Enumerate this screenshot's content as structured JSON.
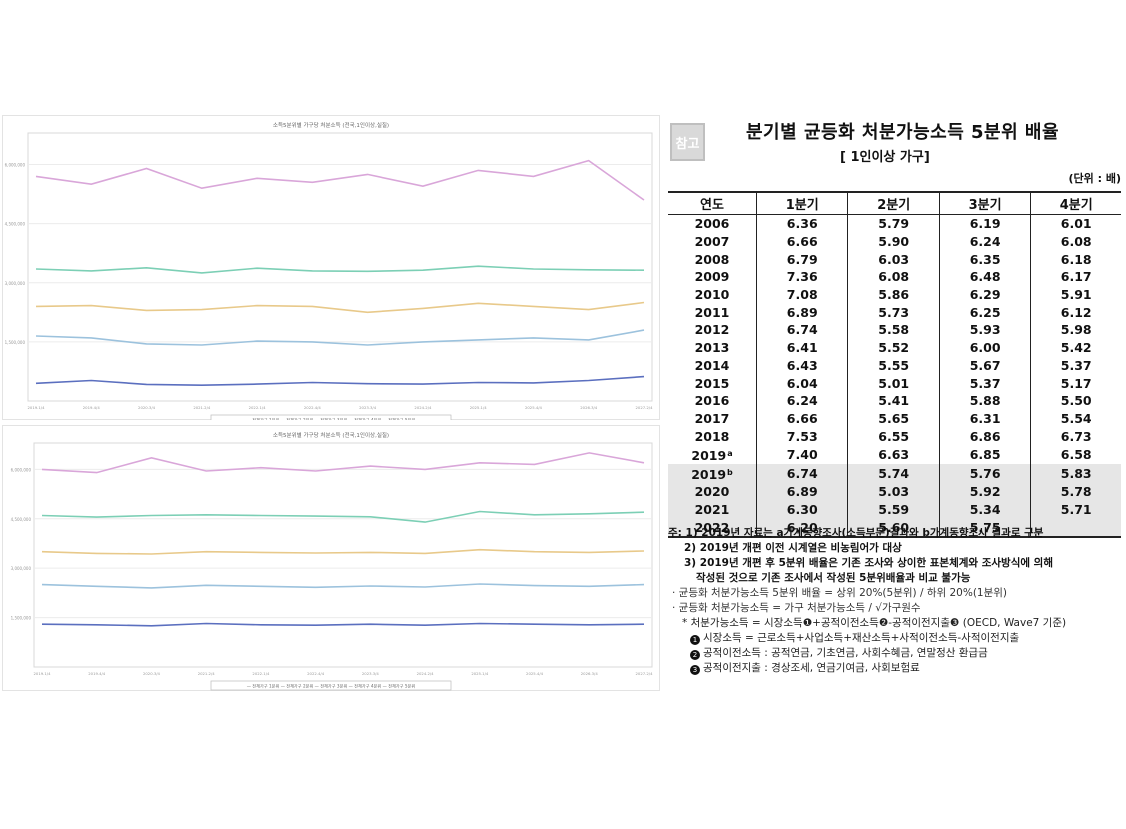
{
  "charts": [
    {
      "title": "소득5분위별 가구당 처분소득 (전국,1인이상,실질)",
      "ytick_labels": [
        "6,000,000",
        "4,500,000",
        "3,000,000",
        "1,500,000",
        ""
      ],
      "xtick_labels": [
        "2019.1/4",
        "2019.4/4",
        "2020.3/4",
        "2021.2/4",
        "2022.1/4",
        "2022.4/4",
        "2023.3/4",
        "2024.2/4",
        "2025.1/4",
        "2025.4/4",
        "2026.3/4",
        "2027.2/4"
      ],
      "legend": "— 전체가구 1분위 — 전체가구 2분위 — 전체가구 3분위 — 전체가구 4분위 — 전체가구 5분위",
      "colors": [
        "#5b6fbf",
        "#9cc2dd",
        "#e8c98a",
        "#7ccfb5",
        "#d9a6d9"
      ]
    },
    {
      "title": "소득5분위별 가구당 처분소득 (전국,1인이상,실질)",
      "ytick_labels": [
        "6,000,000",
        "4,500,000",
        "3,000,000",
        "1,500,000",
        ""
      ],
      "xtick_labels": [
        "2019.1/4",
        "2019.4/4",
        "2020.3/4",
        "2021.2/4",
        "2022.1/4",
        "2022.4/4",
        "2023.3/4",
        "2024.2/4",
        "2025.1/4",
        "2025.4/4",
        "2026.3/4",
        "2027.2/4"
      ],
      "legend": "— 전체가구 1분위 — 전체가구 2분위 — 전체가구 3분위 — 전체가구 4분위 — 전체가구 5분위",
      "colors": [
        "#5b6fbf",
        "#9cc2dd",
        "#e8c98a",
        "#7ccfb5",
        "#d9a6d9"
      ]
    }
  ],
  "chart_data": [
    {
      "type": "line",
      "title": "소득5분위별 가구당 처분소득 (전국,1인이상,실질)",
      "ylim": [
        0,
        6800000
      ],
      "grid": true,
      "legend": "bottom",
      "series": [
        {
          "values": [
            450000,
            520000,
            420000,
            400000,
            430000,
            470000,
            440000,
            430000,
            470000,
            460000,
            520000,
            620000
          ]
        },
        {
          "values": [
            1650000,
            1600000,
            1450000,
            1420000,
            1520000,
            1500000,
            1420000,
            1500000,
            1550000,
            1600000,
            1550000,
            1800000
          ]
        },
        {
          "values": [
            2400000,
            2420000,
            2300000,
            2320000,
            2420000,
            2400000,
            2250000,
            2350000,
            2480000,
            2400000,
            2320000,
            2500000
          ]
        },
        {
          "values": [
            3350000,
            3300000,
            3380000,
            3250000,
            3370000,
            3300000,
            3290000,
            3320000,
            3420000,
            3350000,
            3330000,
            3320000
          ]
        },
        {
          "values": [
            5700000,
            5500000,
            5900000,
            5400000,
            5650000,
            5550000,
            5750000,
            5450000,
            5850000,
            5700000,
            6100000,
            5100000
          ]
        }
      ]
    },
    {
      "type": "line",
      "title": "소득5분위별 가구당 처분소득 (전국,1인이상,실질)",
      "ylim": [
        0,
        6800000
      ],
      "grid": true,
      "legend": "bottom",
      "series": [
        {
          "values": [
            1300000,
            1280000,
            1250000,
            1320000,
            1280000,
            1270000,
            1300000,
            1270000,
            1320000,
            1300000,
            1280000,
            1300000
          ]
        },
        {
          "values": [
            2500000,
            2450000,
            2400000,
            2480000,
            2450000,
            2420000,
            2460000,
            2430000,
            2520000,
            2470000,
            2450000,
            2500000
          ]
        },
        {
          "values": [
            3500000,
            3450000,
            3430000,
            3500000,
            3480000,
            3460000,
            3480000,
            3450000,
            3560000,
            3500000,
            3480000,
            3520000
          ]
        },
        {
          "values": [
            4600000,
            4550000,
            4600000,
            4620000,
            4600000,
            4580000,
            4560000,
            4400000,
            4720000,
            4620000,
            4650000,
            4700000
          ]
        },
        {
          "values": [
            6000000,
            5900000,
            6350000,
            5950000,
            6050000,
            5950000,
            6100000,
            6000000,
            6200000,
            6150000,
            6500000,
            6200000
          ]
        }
      ]
    }
  ],
  "table": {
    "badge": "참고",
    "title": "분기별 균등화 처분가능소득 5분위 배율",
    "subtitle": "[ 1인이상 가구]",
    "unit": "(단위 : 배)",
    "headers": [
      "연도",
      "1분기",
      "2분기",
      "3분기",
      "4분기"
    ],
    "rows": [
      {
        "year": "2006",
        "mark": "",
        "q": [
          "6.36",
          "5.79",
          "6.19",
          "6.01"
        ]
      },
      {
        "year": "2007",
        "mark": "",
        "q": [
          "6.66",
          "5.90",
          "6.24",
          "6.08"
        ]
      },
      {
        "year": "2008",
        "mark": "",
        "q": [
          "6.79",
          "6.03",
          "6.35",
          "6.18"
        ]
      },
      {
        "year": "2009",
        "mark": "",
        "q": [
          "7.36",
          "6.08",
          "6.48",
          "6.17"
        ]
      },
      {
        "year": "2010",
        "mark": "",
        "q": [
          "7.08",
          "5.86",
          "6.29",
          "5.91"
        ]
      },
      {
        "year": "2011",
        "mark": "",
        "q": [
          "6.89",
          "5.73",
          "6.25",
          "6.12"
        ]
      },
      {
        "year": "2012",
        "mark": "",
        "q": [
          "6.74",
          "5.58",
          "5.93",
          "5.98"
        ]
      },
      {
        "year": "2013",
        "mark": "",
        "q": [
          "6.41",
          "5.52",
          "6.00",
          "5.42"
        ]
      },
      {
        "year": "2014",
        "mark": "",
        "q": [
          "6.43",
          "5.55",
          "5.67",
          "5.37"
        ]
      },
      {
        "year": "2015",
        "mark": "",
        "q": [
          "6.04",
          "5.01",
          "5.37",
          "5.17"
        ]
      },
      {
        "year": "2016",
        "mark": "",
        "q": [
          "6.24",
          "5.41",
          "5.88",
          "5.50"
        ]
      },
      {
        "year": "2017",
        "mark": "",
        "q": [
          "6.66",
          "5.65",
          "6.31",
          "5.54"
        ]
      },
      {
        "year": "2018",
        "mark": "",
        "q": [
          "7.53",
          "6.55",
          "6.86",
          "6.73"
        ]
      },
      {
        "year": "2019",
        "mark": "a",
        "q": [
          "7.40",
          "6.63",
          "6.85",
          "6.58"
        ]
      },
      {
        "year": "2019",
        "mark": "b",
        "q": [
          "6.74",
          "5.74",
          "5.76",
          "5.83"
        ]
      },
      {
        "year": "2020",
        "mark": "",
        "q": [
          "6.89",
          "5.03",
          "5.92",
          "5.78"
        ]
      },
      {
        "year": "2021",
        "mark": "",
        "q": [
          "6.30",
          "5.59",
          "5.34",
          "5.71"
        ]
      },
      {
        "year": "2022",
        "mark": "",
        "q": [
          "6.20",
          "5.60",
          "5.75",
          ""
        ]
      }
    ]
  },
  "notes": {
    "n1": "주: 1) 2019년 자료는 a가계동향조사(소득부문)결과와 b가계동향조사 결과로 구분",
    "n2": "2) 2019년 개편 이전 시계열은 비농림어가 대상",
    "n3a": "3) 2019년 개편 후 5분위 배율은 기존 조사와 상이한 표본체계와 조사방식에 의해",
    "n3b": "작성된 것으로 기존 조사에서 작성된 5분위배율과 비교 불가능",
    "b1": "· 균등화 처분가능소득 5분위 배율 = 상위 20%(5분위) / 하위 20%(1분위)",
    "b2": "· 균등화 처분가능소득 = 가구 처분가능소득 / √가구원수",
    "b3": "* 처분가능소득 = 시장소득❶+공적이전소득❷-공적이전지출❸ (OECD, Wave7 기준)",
    "c1": "시장소득 = 근로소득+사업소득+재산소득+사적이전소득-사적이전지출",
    "c2": "공적이전소득 : 공적연금, 기초연금, 사회수혜금, 연말정산 환급금",
    "c3": "공적이전지출 : 경상조세, 연금기여금, 사회보험료",
    "circ1": "1",
    "circ2": "2",
    "circ3": "3"
  }
}
